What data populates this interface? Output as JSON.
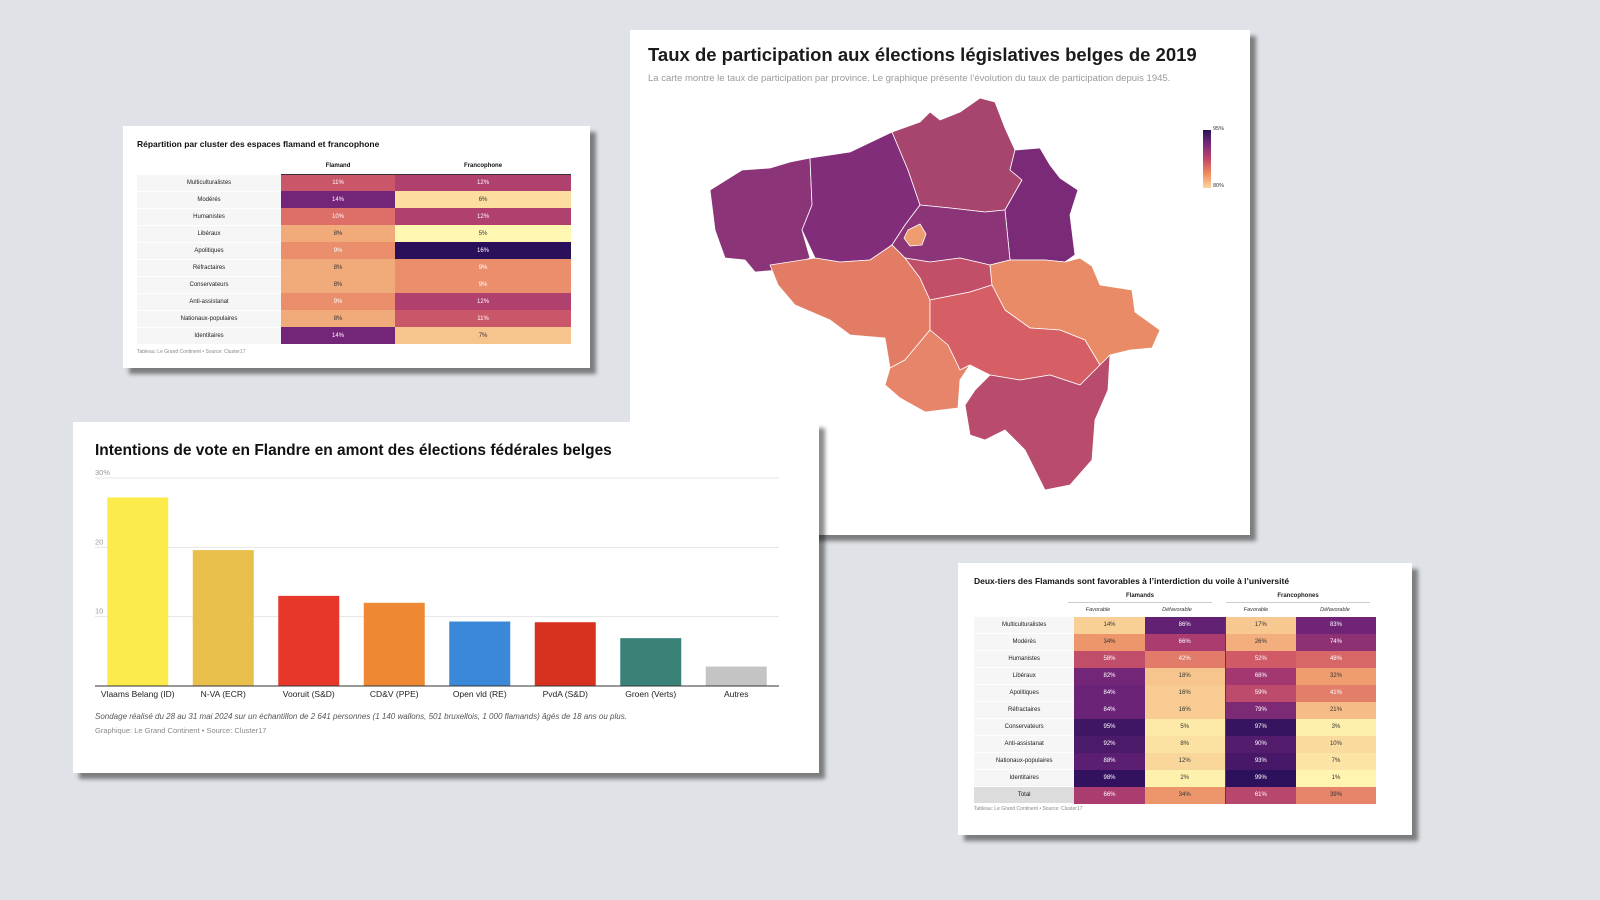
{
  "table1": {
    "title": "Répartition par cluster des espaces flamand et francophone",
    "columns": [
      "Flamand",
      "Francophone"
    ],
    "rows": [
      {
        "label": "Multiculturalistes",
        "values": [
          "11%",
          "12%"
        ]
      },
      {
        "label": "Modérés",
        "values": [
          "14%",
          "6%"
        ]
      },
      {
        "label": "Humanistes",
        "values": [
          "10%",
          "12%"
        ]
      },
      {
        "label": "Libéraux",
        "values": [
          "8%",
          "5%"
        ]
      },
      {
        "label": "Apolitiques",
        "values": [
          "9%",
          "16%"
        ]
      },
      {
        "label": "Réfractaires",
        "values": [
          "8%",
          "9%"
        ]
      },
      {
        "label": "Conservateurs",
        "values": [
          "8%",
          "9%"
        ]
      },
      {
        "label": "Anti-assistanat",
        "values": [
          "9%",
          "12%"
        ]
      },
      {
        "label": "Nationaux-populaires",
        "values": [
          "8%",
          "11%"
        ]
      },
      {
        "label": "Identitaires",
        "values": [
          "14%",
          "7%"
        ]
      }
    ],
    "source": "Tableau: Le Grand Continent • Source: Cluster17"
  },
  "map": {
    "title": "Taux de participation aux élections législatives belges de 2019",
    "subtitle": "La carte montre le taux de participation par province. Le graphique présente l’évolution du taux de participation depuis 1945.",
    "legend_max": "95%",
    "legend_min": "80%",
    "colors": {
      "west": "#8c3478",
      "east": "#822d79",
      "antwerp": "#a8456f",
      "limburg": "#7b2a78",
      "flemish_brabant": "#8c3478",
      "brussels": "#ee9c70",
      "hainaut": "#e27c65",
      "walloon_brabant": "#c24f68",
      "liege": "#e98b66",
      "namur": "#d65f66",
      "namur_south": "#e6856a",
      "luxembourg": "#b94c6c"
    }
  },
  "bar": {
    "title": "Intentions de vote en Flandre en amont des élections fédérales belges",
    "note": "Sondage réalisé du 28 au 31 mai 2024 sur un échantillon de 2 641 personnes (1 140 wallons, 501 bruxellois, 1 000 flamands) âgés de 18 ans ou plus.",
    "source": "Graphique: Le Grand Continent • Source: Cluster17"
  },
  "chart_data": [
    {
      "type": "bar",
      "title": "Intentions de vote en Flandre en amont des élections fédérales belges",
      "categories": [
        "Vlaams Belang (ID)",
        "N-VA (ECR)",
        "Vooruit (S&D)",
        "CD&V (PPE)",
        "Open vld (RE)",
        "PvdA (S&D)",
        "Groen (Verts)",
        "Autres"
      ],
      "values": [
        27.2,
        19.6,
        13.0,
        12.0,
        9.3,
        9.2,
        6.9,
        2.8
      ],
      "colors": [
        "#fbeb4b",
        "#e8bf4b",
        "#e7362a",
        "#ef8832",
        "#3b88d8",
        "#d73220",
        "#3a8178",
        "#c4c4c4"
      ],
      "ylim": [
        0,
        30
      ],
      "yticks": [
        "30%",
        "20",
        "10"
      ],
      "grid": true
    },
    {
      "type": "heatmap",
      "title": "Deux-tiers des Flamands sont favorables à l’interdiction du voile à l’université",
      "groups": [
        "Flamands",
        "Francophones"
      ],
      "subcolumns": [
        "Favorable",
        "Défavorable",
        "Favorable",
        "Défavorable"
      ],
      "rows": [
        {
          "label": "Multiculturalistes",
          "values": [
            "14%",
            "86%",
            "17%",
            "83%"
          ]
        },
        {
          "label": "Modérés",
          "values": [
            "34%",
            "66%",
            "26%",
            "74%"
          ]
        },
        {
          "label": "Humanistes",
          "values": [
            "58%",
            "42%",
            "52%",
            "48%"
          ]
        },
        {
          "label": "Libéraux",
          "values": [
            "82%",
            "18%",
            "68%",
            "32%"
          ]
        },
        {
          "label": "Apolitiques",
          "values": [
            "84%",
            "16%",
            "59%",
            "41%"
          ]
        },
        {
          "label": "Réfractaires",
          "values": [
            "84%",
            "16%",
            "79%",
            "21%"
          ]
        },
        {
          "label": "Conservateurs",
          "values": [
            "95%",
            "5%",
            "97%",
            "3%"
          ]
        },
        {
          "label": "Anti-assistanat",
          "values": [
            "92%",
            "8%",
            "90%",
            "10%"
          ]
        },
        {
          "label": "Nationaux-populaires",
          "values": [
            "88%",
            "12%",
            "93%",
            "7%"
          ]
        },
        {
          "label": "Identitaires",
          "values": [
            "98%",
            "2%",
            "99%",
            "1%"
          ]
        },
        {
          "label": "Total",
          "values": [
            "66%",
            "34%",
            "61%",
            "39%"
          ]
        }
      ],
      "source": "Tableau: Le Grand Continent • Source: Cluster17"
    }
  ]
}
